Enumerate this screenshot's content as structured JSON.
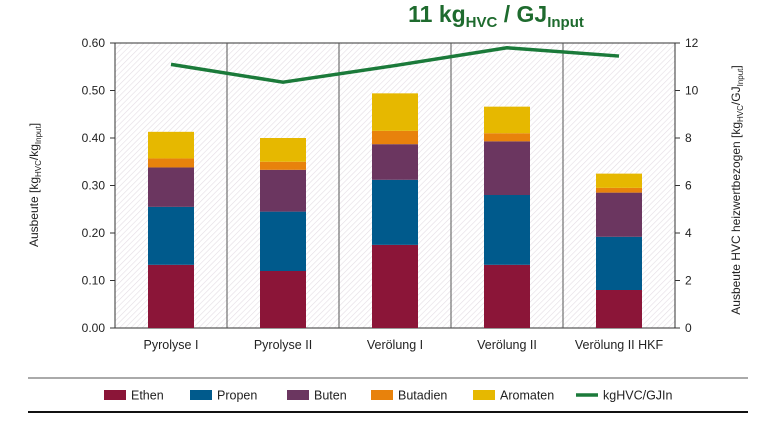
{
  "chart_data": {
    "type": "bar",
    "stacked": true,
    "title": {
      "parts": [
        "11 kg",
        "HVC",
        " / GJ",
        "Input"
      ]
    },
    "categories": [
      "Pyrolyse I",
      "Pyrolyse II",
      "Verölung I",
      "Verölung II",
      "Verölung II HKF"
    ],
    "series": [
      {
        "name": "Ethen",
        "color": "#8b1538",
        "values": [
          0.133,
          0.12,
          0.175,
          0.133,
          0.08
        ]
      },
      {
        "name": "Propen",
        "color": "#005a8c",
        "values": [
          0.122,
          0.125,
          0.137,
          0.147,
          0.112
        ]
      },
      {
        "name": "Buten",
        "color": "#6b3660",
        "values": [
          0.083,
          0.088,
          0.075,
          0.113,
          0.093
        ]
      },
      {
        "name": "Butadien",
        "color": "#e8820c",
        "values": [
          0.019,
          0.017,
          0.028,
          0.017,
          0.01
        ]
      },
      {
        "name": "Aromaten",
        "color": "#e6b800",
        "values": [
          0.056,
          0.05,
          0.079,
          0.056,
          0.03
        ]
      }
    ],
    "line_series": {
      "name": "kgHVC/GJIn",
      "color": "#1b7a3a",
      "axis": "right",
      "values": [
        11.1,
        10.35,
        11.05,
        11.8,
        11.45
      ]
    },
    "ylabel_left": {
      "parts": [
        "Ausbeute [kg",
        "HVC",
        "/kg",
        "Input",
        "]"
      ]
    },
    "ylabel_right": {
      "parts": [
        "Ausbeute HVC heizwertbezogen [kg",
        "HVC",
        "/GJ",
        "Input",
        "]"
      ]
    },
    "ylim_left": [
      0,
      0.6
    ],
    "ylim_right": [
      0,
      12
    ],
    "yticks_left": [
      "0.00",
      "0.10",
      "0.20",
      "0.30",
      "0.40",
      "0.50",
      "0.60"
    ],
    "yticks_right": [
      "0",
      "2",
      "4",
      "6",
      "8",
      "10",
      "12"
    ],
    "legend_position": "bottom",
    "grid": false
  }
}
